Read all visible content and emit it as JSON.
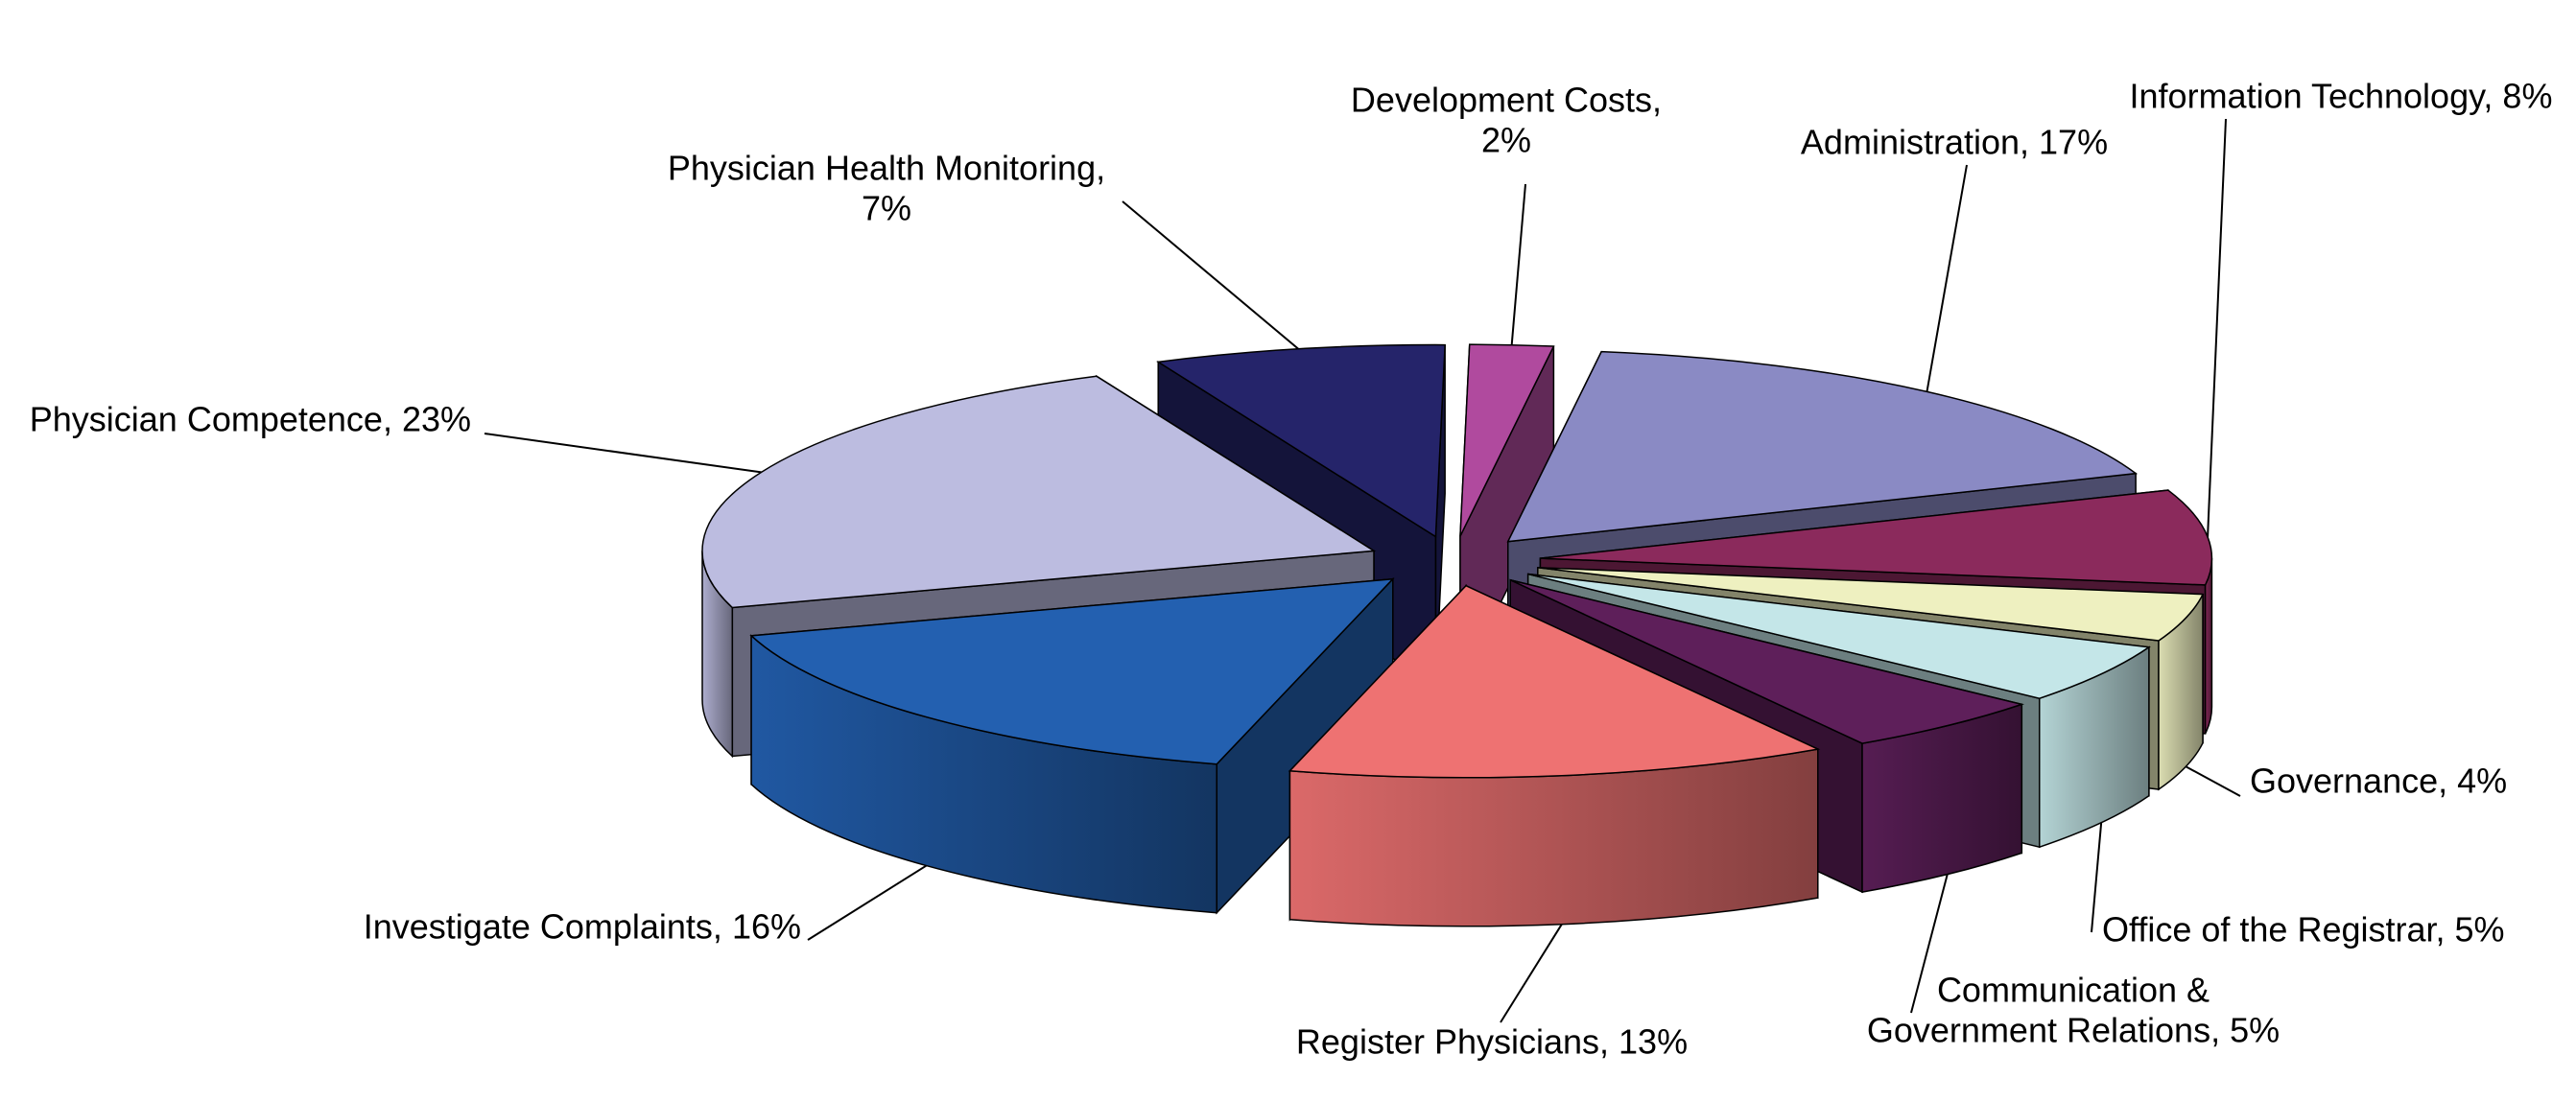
{
  "chart_data": {
    "type": "pie3d",
    "values": [
      17,
      8,
      4,
      5,
      5,
      13,
      16,
      23,
      7,
      2
    ],
    "value_labels": [
      [
        "Administration, 17%"
      ],
      [
        "Information Technology, 8%"
      ],
      [
        "Governance, 4%"
      ],
      [
        "Office of the Registrar, 5%"
      ],
      [
        "Communication &",
        "Government Relations, 5%"
      ],
      [
        "Register Physicians, 13%"
      ],
      [
        "Investigate Complaints, 16%"
      ],
      [
        "Physician Competence, 23%"
      ],
      [
        "Physician Health Monitoring,",
        "7%"
      ],
      [
        "Development Costs,",
        "2%"
      ]
    ],
    "colors": [
      "#8a8ac4",
      "#8b2a5c",
      "#eef0c0",
      "#c4e6e8",
      "#5e1f5a",
      "#ee7272",
      "#2360b0",
      "#bcbce0",
      "#25246a",
      "#b04a9e"
    ]
  }
}
